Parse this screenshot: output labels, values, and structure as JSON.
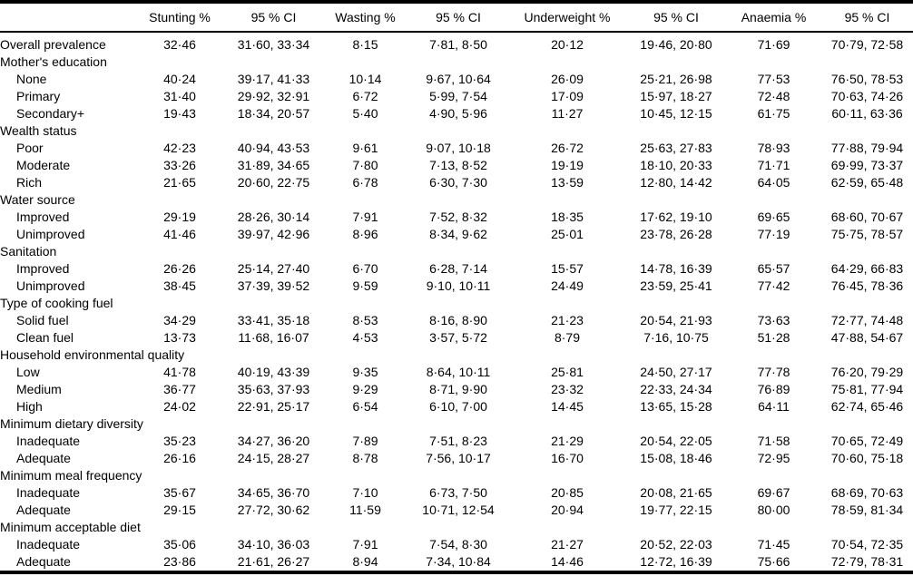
{
  "table": {
    "columns": [
      "",
      "Stunting %",
      "95 % CI",
      "Wasting %",
      "95 % CI",
      "Underweight %",
      "95 % CI",
      "Anaemia %",
      "95 % CI"
    ],
    "rows": [
      {
        "label": "Overall prevalence",
        "indent": 0,
        "values": [
          "32·46",
          "31·60, 33·34",
          "8·15",
          "7·81, 8·50",
          "20·12",
          "19·46, 20·80",
          "71·69",
          "70·79, 72·58"
        ]
      },
      {
        "label": "Mother's education",
        "indent": 0,
        "values": []
      },
      {
        "label": "None",
        "indent": 1,
        "values": [
          "40·24",
          "39·17, 41·33",
          "10·14",
          "9·67, 10·64",
          "26·09",
          "25·21, 26·98",
          "77·53",
          "76·50, 78·53"
        ]
      },
      {
        "label": "Primary",
        "indent": 1,
        "values": [
          "31·40",
          "29·92, 32·91",
          "6·72",
          "5·99, 7·54",
          "17·09",
          "15·97, 18·27",
          "72·48",
          "70·63, 74·26"
        ]
      },
      {
        "label": "Secondary+",
        "indent": 1,
        "values": [
          "19·43",
          "18·34, 20·57",
          "5·40",
          "4·90, 5·96",
          "11·27",
          "10·45, 12·15",
          "61·75",
          "60·11, 63·36"
        ]
      },
      {
        "label": "Wealth status",
        "indent": 0,
        "values": []
      },
      {
        "label": "Poor",
        "indent": 1,
        "values": [
          "42·23",
          "40·94, 43·53",
          "9·61",
          "9·07, 10·18",
          "26·72",
          "25·63, 27·83",
          "78·93",
          "77·88, 79·94"
        ]
      },
      {
        "label": "Moderate",
        "indent": 1,
        "values": [
          "33·26",
          "31·89, 34·65",
          "7·80",
          "7·13, 8·52",
          "19·19",
          "18·10, 20·33",
          "71·71",
          "69·99, 73·37"
        ]
      },
      {
        "label": "Rich",
        "indent": 1,
        "values": [
          "21·65",
          "20·60, 22·75",
          "6·78",
          "6·30, 7·30",
          "13·59",
          "12·80, 14·42",
          "64·05",
          "62·59, 65·48"
        ]
      },
      {
        "label": "Water source",
        "indent": 0,
        "values": []
      },
      {
        "label": "Improved",
        "indent": 1,
        "values": [
          "29·19",
          "28·26, 30·14",
          "7·91",
          "7·52, 8·32",
          "18·35",
          "17·62, 19·10",
          "69·65",
          "68·60, 70·67"
        ]
      },
      {
        "label": "Unimproved",
        "indent": 1,
        "values": [
          "41·46",
          "39·97, 42·96",
          "8·96",
          "8·34, 9·62",
          "25·01",
          "23·78, 26·28",
          "77·19",
          "75·75, 78·57"
        ]
      },
      {
        "label": "Sanitation",
        "indent": 0,
        "values": []
      },
      {
        "label": "Improved",
        "indent": 1,
        "values": [
          "26·26",
          "25·14, 27·40",
          "6·70",
          "6·28, 7·14",
          "15·57",
          "14·78, 16·39",
          "65·57",
          "64·29, 66·83"
        ]
      },
      {
        "label": "Unimproved",
        "indent": 1,
        "values": [
          "38·45",
          "37·39, 39·52",
          "9·59",
          "9·10, 10·11",
          "24·49",
          "23·59, 25·41",
          "77·42",
          "76·45, 78·36"
        ]
      },
      {
        "label": "Type of cooking fuel",
        "indent": 0,
        "values": []
      },
      {
        "label": "Solid fuel",
        "indent": 1,
        "values": [
          "34·29",
          "33·41, 35·18",
          "8·53",
          "8·16, 8·90",
          "21·23",
          "20·54, 21·93",
          "73·63",
          "72·77, 74·48"
        ]
      },
      {
        "label": "Clean fuel",
        "indent": 1,
        "values": [
          "13·73",
          "11·68, 16·07",
          "4·53",
          "3·57, 5·72",
          "8·79",
          "7·16, 10·75",
          "51·28",
          "47·88, 54·67"
        ]
      },
      {
        "label": "Household environmental quality",
        "indent": 0,
        "values": []
      },
      {
        "label": "Low",
        "indent": 1,
        "values": [
          "41·78",
          "40·19, 43·39",
          "9·35",
          "8·64, 10·11",
          "25·81",
          "24·50, 27·17",
          "77·78",
          "76·20, 79·29"
        ]
      },
      {
        "label": "Medium",
        "indent": 1,
        "values": [
          "36·77",
          "35·63, 37·93",
          "9·29",
          "8·71, 9·90",
          "23·32",
          "22·33, 24·34",
          "76·89",
          "75·81, 77·94"
        ]
      },
      {
        "label": "High",
        "indent": 1,
        "values": [
          "24·02",
          "22·91, 25·17",
          "6·54",
          "6·10, 7·00",
          "14·45",
          "13·65, 15·28",
          "64·11",
          "62·74, 65·46"
        ]
      },
      {
        "label": "Minimum dietary diversity",
        "indent": 0,
        "values": []
      },
      {
        "label": "Inadequate",
        "indent": 1,
        "values": [
          "35·23",
          "34·27, 36·20",
          "7·89",
          "7·51, 8·23",
          "21·29",
          "20·54, 22·05",
          "71·58",
          "70·65, 72·49"
        ]
      },
      {
        "label": "Adequate",
        "indent": 1,
        "values": [
          "26·16",
          "24·15, 28·27",
          "8·78",
          "7·56, 10·17",
          "16·70",
          "15·08, 18·46",
          "72·95",
          "70·60, 75·18"
        ]
      },
      {
        "label": "Minimum meal frequency",
        "indent": 0,
        "values": []
      },
      {
        "label": "Inadequate",
        "indent": 1,
        "values": [
          "35·67",
          "34·65, 36·70",
          "7·10",
          "6·73, 7·50",
          "20·85",
          "20·08, 21·65",
          "69·67",
          "68·69, 70·63"
        ]
      },
      {
        "label": "Adequate",
        "indent": 1,
        "values": [
          "29·15",
          "27·72, 30·62",
          "11·59",
          "10·71, 12·54",
          "20·94",
          "19·77, 22·15",
          "80·00",
          "78·59, 81·34"
        ]
      },
      {
        "label": "Minimum acceptable diet",
        "indent": 0,
        "values": []
      },
      {
        "label": "Inadequate",
        "indent": 1,
        "values": [
          "35·06",
          "34·10, 36·03",
          "7·91",
          "7·54, 8·30",
          "21·27",
          "20·52, 22·03",
          "71·45",
          "70·54, 72·35"
        ]
      },
      {
        "label": "Adequate",
        "indent": 1,
        "values": [
          "23·86",
          "21·61, 26·27",
          "8·94",
          "7·34, 10·84",
          "14·46",
          "12·72, 16·39",
          "75·66",
          "72·79, 78·31"
        ]
      }
    ]
  }
}
